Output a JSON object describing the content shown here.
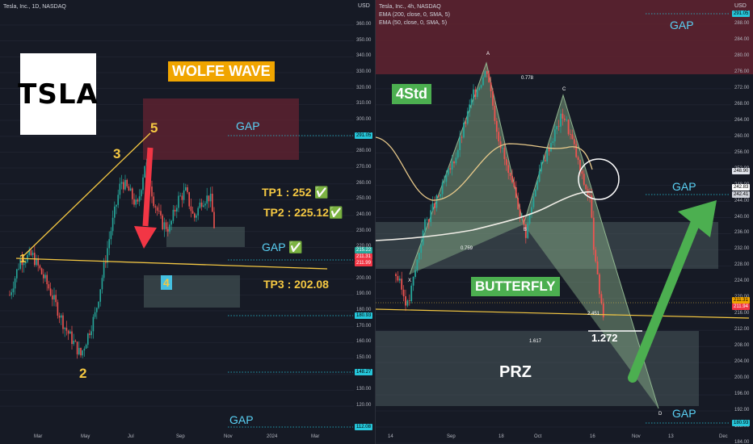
{
  "left": {
    "header": "Tesla, Inc., 1D, NASDAQ",
    "currency": "USD",
    "logo": "TSLA",
    "title": "WOLFE WAVE",
    "wave_points": [
      "1",
      "2",
      "3",
      "4",
      "5"
    ],
    "gap_labels": [
      "GAP",
      "GAP ✅",
      "GAP"
    ],
    "targets": [
      "TP1 : 252 ✅",
      "TP2 : 225.12✅",
      "TP3 : 202.08"
    ],
    "y_ticks": [
      "360.00",
      "350.00",
      "340.00",
      "330.00",
      "320.00",
      "310.00",
      "300.00",
      "290.00",
      "280.00",
      "270.00",
      "260.00",
      "250.00",
      "240.00",
      "230.00",
      "220.00",
      "210.00",
      "200.00",
      "190.00",
      "180.00",
      "170.00",
      "160.00",
      "150.00",
      "140.00",
      "130.00",
      "120.00"
    ],
    "price_tags": [
      "291.05",
      "215.22",
      "211.31",
      "211.99",
      "180.93",
      "148.27",
      "112.08"
    ],
    "x_ticks": [
      "Mar",
      "May",
      "Jul",
      "Sep",
      "Nov",
      "2024",
      "Mar"
    ]
  },
  "right": {
    "header_lines": [
      "Tesla, Inc., 4h, NASDAQ",
      "EMA (200, close, 0, SMA, 5)",
      "EMA (50, close, 0, SMA, 5)"
    ],
    "currency": "USD",
    "std_label": "4Std",
    "pattern_label": "BUTTERFLY",
    "prz_label": "PRZ",
    "gap_labels": [
      "GAP",
      "GAP",
      "GAP"
    ],
    "points": [
      "X",
      "A",
      "B",
      "C",
      "D"
    ],
    "ratios": [
      "0.778",
      "0.759",
      "1.617",
      "2.451",
      "1.272"
    ],
    "y_ticks": [
      "288.00",
      "284.00",
      "280.00",
      "276.00",
      "272.00",
      "268.00",
      "264.00",
      "260.00",
      "256.00",
      "252.00",
      "248.00",
      "244.00",
      "240.00",
      "236.00",
      "232.00",
      "228.00",
      "224.00",
      "220.00",
      "216.00",
      "212.00",
      "208.00",
      "204.00",
      "200.00",
      "196.00",
      "192.00",
      "188.00",
      "184.00"
    ],
    "price_tags": [
      "291.05",
      "248.90",
      "242.83",
      "242.41",
      "211.31",
      "211.94",
      "180.93"
    ],
    "x_ticks": [
      "14",
      "Sep",
      "18",
      "Oct",
      "16",
      "Nov",
      "13",
      "Dec"
    ]
  },
  "chart_data": [
    {
      "type": "candlestick",
      "title": "Tesla, Inc., 1D, NASDAQ",
      "ylim": [
        112,
        365
      ],
      "annotations": [
        "WOLFE WAVE",
        "TP1 : 252",
        "TP2 : 225.12",
        "TP3 : 202.08"
      ]
    },
    {
      "type": "candlestick",
      "title": "Tesla, Inc., 4h, NASDAQ",
      "ylim": [
        180,
        292
      ],
      "annotations": [
        "BUTTERFLY",
        "PRZ",
        "4Std"
      ]
    }
  ],
  "colors": {
    "up": "#26a69a",
    "down": "#ef5350",
    "gap_box": "#5c2230",
    "zone": "#4a5a5c",
    "wave_line": "#f5c842",
    "arrow_red": "#f23645",
    "arrow_green": "#4caf50"
  }
}
